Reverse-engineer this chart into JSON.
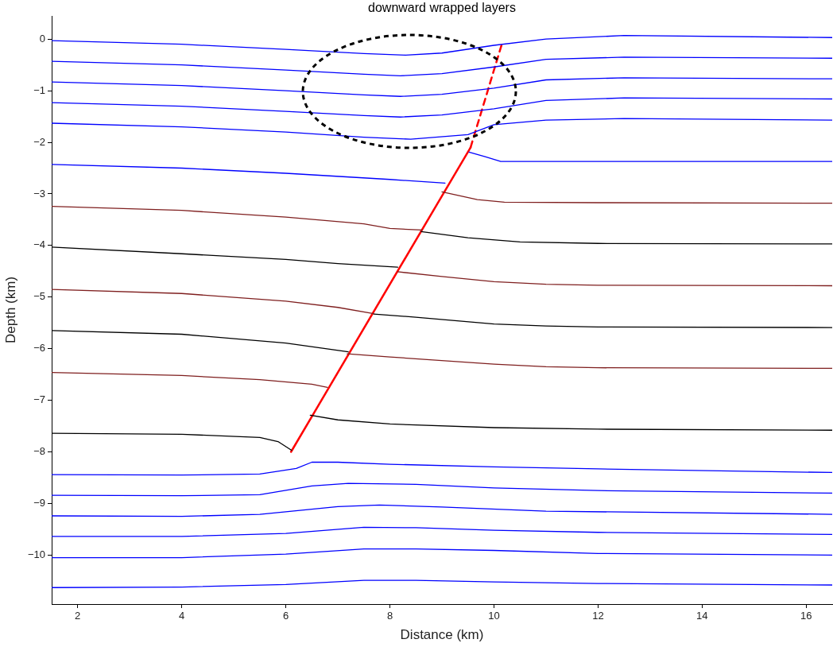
{
  "chart_data": {
    "type": "line",
    "title": "downward wrapped layers",
    "xlabel": "Distance (km)",
    "ylabel": "Depth (km)",
    "xlim": [
      1.5,
      16.5
    ],
    "ylim": [
      -10.95,
      0.45
    ],
    "xticks": [
      2,
      4,
      6,
      8,
      10,
      12,
      14,
      16
    ],
    "yticks": [
      0,
      -1,
      -2,
      -3,
      -4,
      -5,
      -6,
      -7,
      -8,
      -9,
      -10
    ],
    "grid": false,
    "legend": false,
    "marker": "none",
    "line_style": "solid",
    "series": [
      {
        "color": "#0000ff",
        "x": [
          1.5,
          4,
          6,
          7.5,
          8.3,
          9,
          10,
          11,
          12.5,
          16.5
        ],
        "values": [
          -0.03,
          -0.1,
          -0.2,
          -0.28,
          -0.31,
          -0.27,
          -0.12,
          0.0,
          0.07,
          0.03
        ]
      },
      {
        "color": "#0000ff",
        "x": [
          1.5,
          4,
          6,
          7.5,
          8.2,
          9,
          10,
          11,
          12.5,
          16.5
        ],
        "values": [
          -0.43,
          -0.5,
          -0.6,
          -0.68,
          -0.71,
          -0.67,
          -0.54,
          -0.39,
          -0.35,
          -0.37
        ]
      },
      {
        "color": "#0000ff",
        "x": [
          1.5,
          4,
          6,
          7.5,
          8.2,
          9,
          10,
          11,
          12.5,
          16.5
        ],
        "values": [
          -0.83,
          -0.9,
          -1.0,
          -1.08,
          -1.11,
          -1.07,
          -0.95,
          -0.79,
          -0.75,
          -0.77
        ]
      },
      {
        "color": "#0000ff",
        "x": [
          1.5,
          4,
          6,
          7.5,
          8.2,
          9,
          10,
          11,
          12.5,
          16.5
        ],
        "values": [
          -1.23,
          -1.3,
          -1.4,
          -1.48,
          -1.51,
          -1.47,
          -1.35,
          -1.19,
          -1.14,
          -1.16
        ]
      },
      {
        "color": "#0000ff",
        "x": [
          1.5,
          4,
          6,
          7.5,
          8.4,
          9.5,
          10,
          11,
          12.5,
          16.5
        ],
        "values": [
          -1.63,
          -1.7,
          -1.8,
          -1.9,
          -1.94,
          -1.85,
          -1.66,
          -1.57,
          -1.54,
          -1.57
        ]
      },
      {
        "color": "#0000ff",
        "x": [
          1.5,
          4,
          6,
          8,
          9.06,
          9.3,
          9.52,
          9.83,
          10.13,
          12,
          16.5
        ],
        "values": [
          -2.43,
          -2.5,
          -2.6,
          -2.72,
          -2.79,
          null,
          -2.19,
          -2.28,
          -2.37,
          -2.37,
          -2.37
        ]
      },
      {
        "color": "#7f1f1f",
        "x": [
          1.5,
          4,
          6,
          7.5,
          8.0,
          8.62,
          8.8,
          9.0,
          9.68,
          10.2,
          12,
          16.5
        ],
        "values": [
          -3.24,
          -3.32,
          -3.45,
          -3.58,
          -3.67,
          -3.7,
          null,
          -2.96,
          -3.11,
          -3.16,
          -3.17,
          -3.18
        ]
      },
      {
        "color": "#000000",
        "x": [
          1.5,
          4,
          6,
          7,
          8.15,
          8.4,
          8.6,
          9.5,
          10.5,
          12,
          16.5
        ],
        "values": [
          -4.03,
          -4.16,
          -4.27,
          -4.35,
          -4.42,
          null,
          -3.73,
          -3.85,
          -3.93,
          -3.96,
          -3.97
        ]
      },
      {
        "color": "#7f1f1f",
        "x": [
          1.5,
          4,
          6,
          7,
          7.69,
          7.9,
          8.15,
          9,
          10,
          11,
          12,
          16.5
        ],
        "values": [
          -4.85,
          -4.93,
          -5.08,
          -5.2,
          -5.32,
          null,
          -4.51,
          -4.6,
          -4.7,
          -4.75,
          -4.77,
          -4.78
        ]
      },
      {
        "color": "#000000",
        "x": [
          1.5,
          4,
          6,
          7.2,
          7.45,
          7.69,
          8.5,
          10,
          11,
          12,
          16.5
        ],
        "values": [
          -5.65,
          -5.72,
          -5.89,
          -6.06,
          null,
          -5.33,
          -5.39,
          -5.52,
          -5.56,
          -5.58,
          -5.59
        ]
      },
      {
        "color": "#7f1f1f",
        "x": [
          1.5,
          4,
          5.5,
          6.5,
          6.8,
          7.0,
          7.18,
          8,
          10,
          11,
          12,
          16.5
        ],
        "values": [
          -6.46,
          -6.52,
          -6.6,
          -6.69,
          -6.75,
          null,
          -6.1,
          -6.16,
          -6.3,
          -6.35,
          -6.37,
          -6.38
        ]
      },
      {
        "color": "#000000",
        "x": [
          1.5,
          4,
          5.5,
          5.85,
          6.11,
          6.3,
          6.47,
          7,
          8,
          10,
          12,
          16.5
        ],
        "values": [
          -7.64,
          -7.66,
          -7.72,
          -7.8,
          -7.97,
          null,
          -7.29,
          -7.38,
          -7.46,
          -7.53,
          -7.56,
          -7.58
        ]
      },
      {
        "color": "#0000ff",
        "x": [
          1.5,
          4,
          5.5,
          6.2,
          6.5,
          7,
          8,
          10,
          12,
          16.5
        ],
        "values": [
          -8.44,
          -8.45,
          -8.43,
          -8.32,
          -8.2,
          -8.2,
          -8.24,
          -8.29,
          -8.33,
          -8.4
        ]
      },
      {
        "color": "#0000ff",
        "x": [
          1.5,
          4,
          5.5,
          6.5,
          7.2,
          8.5,
          10,
          12,
          16.5
        ],
        "values": [
          -8.84,
          -8.85,
          -8.83,
          -8.66,
          -8.61,
          -8.63,
          -8.7,
          -8.75,
          -8.8
        ]
      },
      {
        "color": "#0000ff",
        "x": [
          1.5,
          4,
          5.5,
          7,
          7.8,
          9,
          11,
          16.5
        ],
        "values": [
          -9.24,
          -9.25,
          -9.21,
          -9.06,
          -9.03,
          -9.07,
          -9.15,
          -9.21
        ]
      },
      {
        "color": "#0000ff",
        "x": [
          1.5,
          4,
          6,
          7.5,
          8.5,
          10,
          12,
          16.5
        ],
        "values": [
          -9.64,
          -9.64,
          -9.58,
          -9.46,
          -9.47,
          -9.52,
          -9.56,
          -9.6
        ]
      },
      {
        "color": "#0000ff",
        "x": [
          1.5,
          4,
          6,
          7.5,
          8.5,
          10,
          12,
          16.5
        ],
        "values": [
          -10.05,
          -10.05,
          -9.98,
          -9.88,
          -9.88,
          -9.91,
          -9.97,
          -10.0
        ]
      },
      {
        "color": "#0000ff",
        "x": [
          1.5,
          4,
          6,
          7.5,
          8.5,
          10,
          12,
          16.5
        ],
        "values": [
          -10.63,
          -10.62,
          -10.57,
          -10.49,
          -10.49,
          -10.52,
          -10.55,
          -10.58
        ]
      },
      {
        "color": "#ff0000",
        "x": [
          6.1,
          9.55
        ],
        "values": [
          -8.0,
          -2.1
        ]
      },
      {
        "color": "#ff0000",
        "line_style": "dashed",
        "x": [
          9.55,
          10.15
        ],
        "values": [
          -2.1,
          -0.1
        ]
      }
    ]
  }
}
